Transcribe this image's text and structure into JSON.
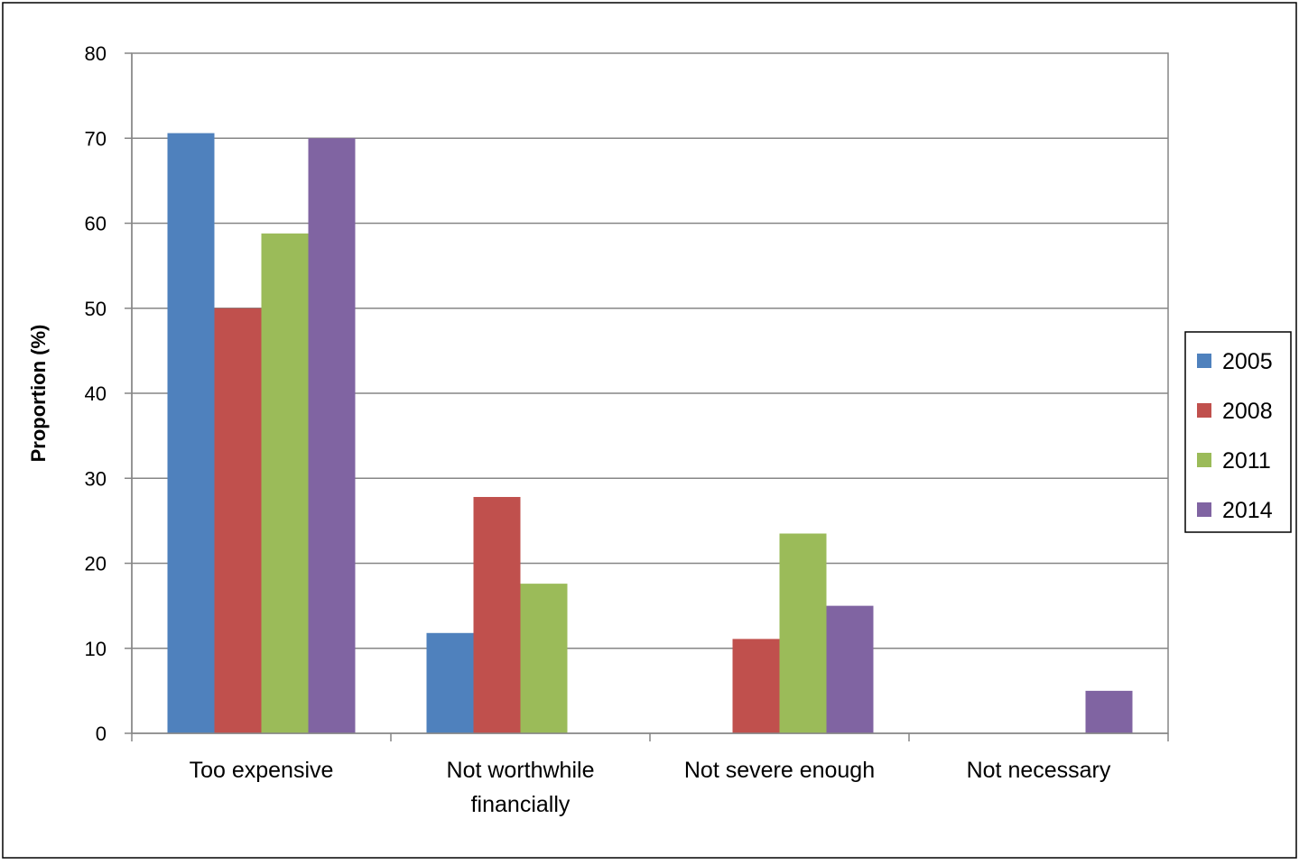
{
  "chart_data": {
    "type": "bar",
    "title": "",
    "xlabel": "",
    "ylabel": "Proportion (%)",
    "ylim": [
      0,
      80
    ],
    "yticks": [
      0,
      10,
      20,
      30,
      40,
      50,
      60,
      70,
      80
    ],
    "grid": true,
    "legend_position": "right",
    "categories": [
      [
        "Too expensive"
      ],
      [
        "Not worthwhile",
        "financially"
      ],
      [
        "Not severe enough"
      ],
      [
        "Not necessary"
      ]
    ],
    "series": [
      {
        "name": "2005",
        "color": "#4F81BD",
        "values": [
          70.6,
          11.8,
          0,
          0
        ]
      },
      {
        "name": "2008",
        "color": "#C0504D",
        "values": [
          50,
          27.8,
          11.1,
          0
        ]
      },
      {
        "name": "2011",
        "color": "#9BBB59",
        "values": [
          58.8,
          17.6,
          23.5,
          0
        ]
      },
      {
        "name": "2014",
        "color": "#8064A2",
        "values": [
          70,
          0,
          15,
          5
        ]
      }
    ]
  }
}
